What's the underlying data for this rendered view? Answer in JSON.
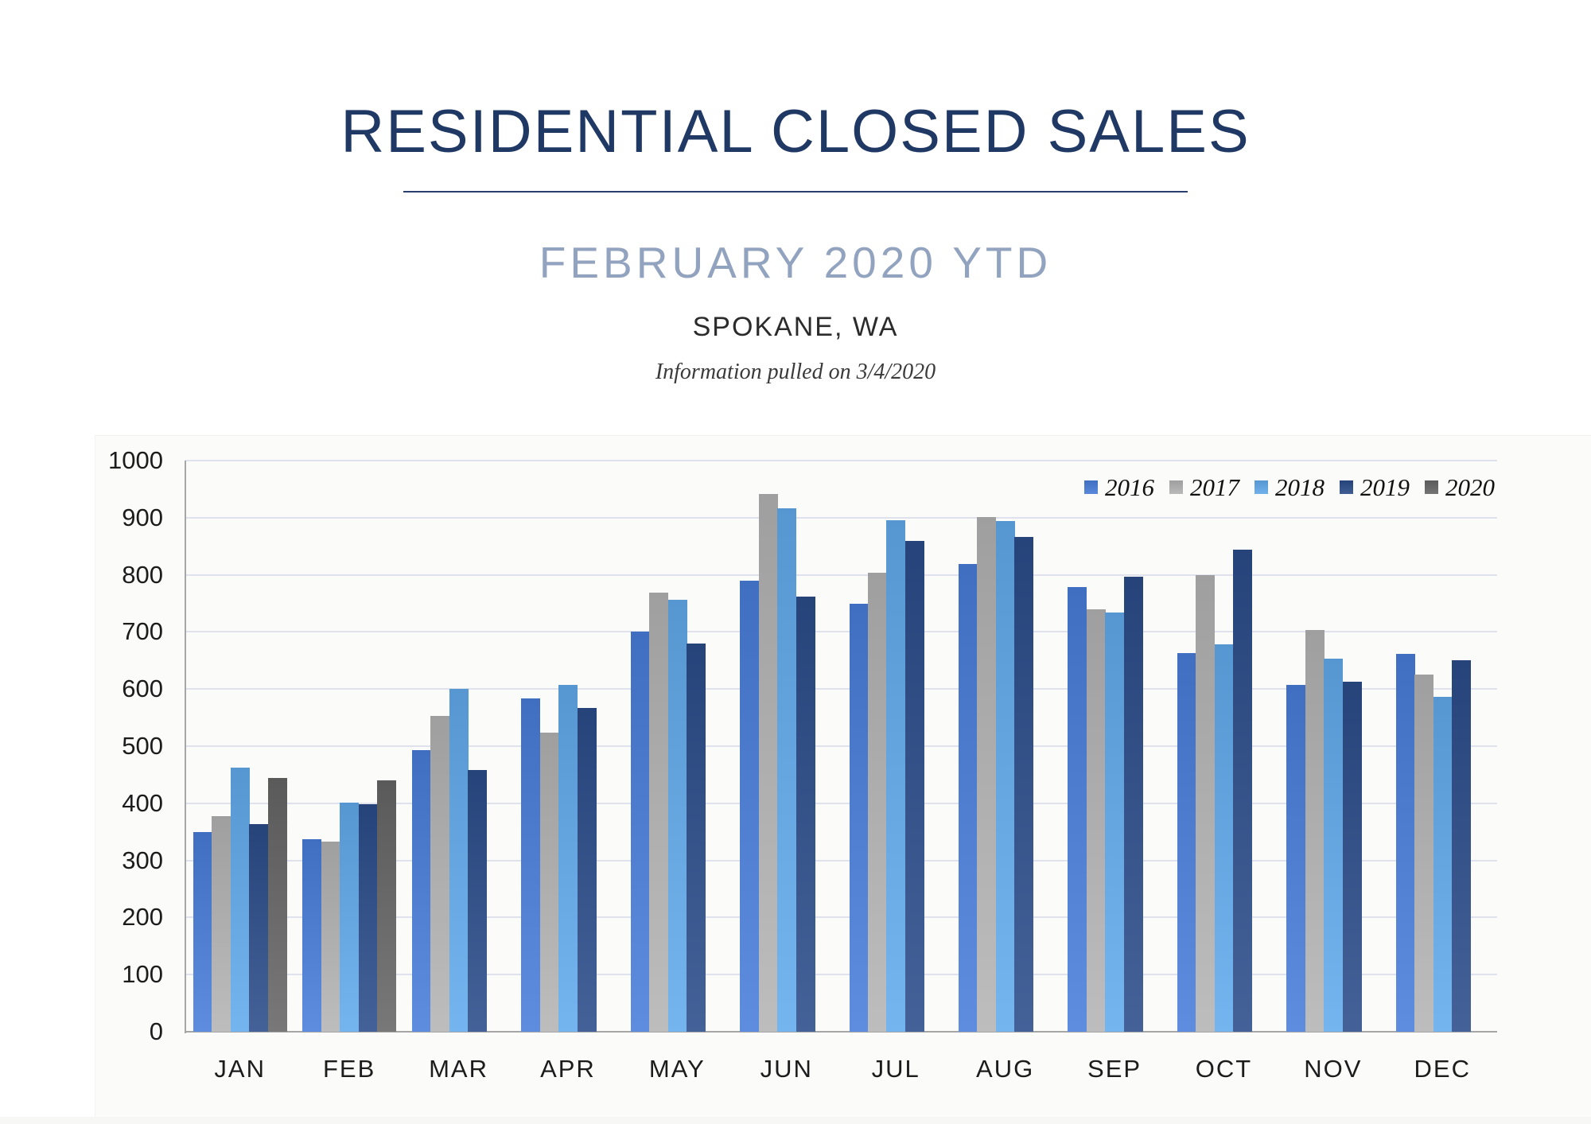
{
  "header": {
    "title": "RESIDENTIAL CLOSED SALES",
    "subtitle": "FEBRUARY 2020 YTD",
    "location": "SPOKANE, WA",
    "note": "Information pulled on 3/4/2020"
  },
  "colors": {
    "title_navy": "#1F3864",
    "subtitle_blue_gray": "#92A3BF",
    "axis_gray": "#A6A6A6",
    "gridline": "#DFE2EC"
  },
  "chart_data": {
    "type": "bar",
    "title": "Residential Closed Sales, Spokane WA, by month and year",
    "categories": [
      "JAN",
      "FEB",
      "MAR",
      "APR",
      "MAY",
      "JUN",
      "JUL",
      "AUG",
      "SEP",
      "OCT",
      "NOV",
      "DEC"
    ],
    "series": [
      {
        "name": "2016",
        "color": "#4472C4",
        "values": [
          350,
          337,
          493,
          583,
          700,
          790,
          749,
          819,
          778,
          663,
          607,
          662
        ]
      },
      {
        "name": "2017",
        "color": "#A3A3A3",
        "values": [
          377,
          333,
          553,
          523,
          769,
          942,
          804,
          901,
          740,
          800,
          703,
          626
        ]
      },
      {
        "name": "2018",
        "color": "#5B9BD5",
        "values": [
          463,
          401,
          600,
          607,
          756,
          916,
          895,
          894,
          734,
          678,
          653,
          587
        ]
      },
      {
        "name": "2019",
        "color": "#2A477E",
        "values": [
          363,
          399,
          458,
          567,
          680,
          762,
          859,
          866,
          797,
          844,
          613,
          651
        ]
      },
      {
        "name": "2020",
        "color": "#5E5E5E",
        "values": [
          444,
          440,
          null,
          null,
          null,
          null,
          null,
          null,
          null,
          null,
          null,
          null
        ]
      }
    ],
    "xlabel": "",
    "ylabel": "",
    "ylim": [
      0,
      1000
    ],
    "ytick_step": 100,
    "grid": true,
    "legend_position": "top-right"
  }
}
